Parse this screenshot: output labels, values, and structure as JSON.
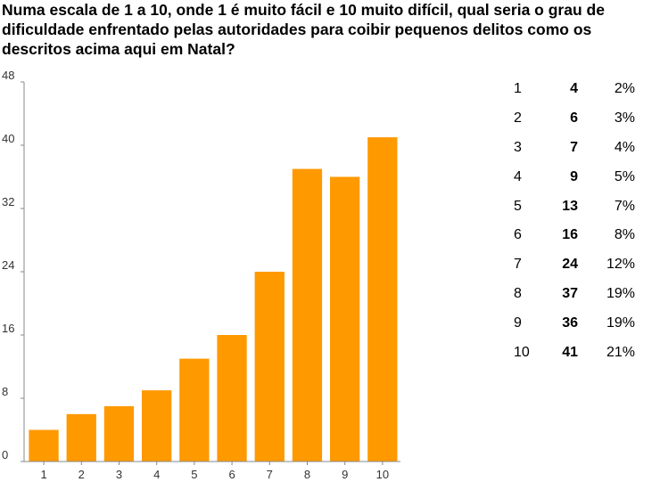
{
  "question": "Numa escala de 1 a 10, onde 1 é muito fácil e 10 muito difícil, qual seria o grau de dificuldade enfrentado pelas autoridades para coibir pequenos delitos como os descritos acima aqui em Natal?",
  "colors": {
    "bar": "#FF9900",
    "axis": "#888888"
  },
  "chart_data": {
    "type": "bar",
    "title": "Numa escala de 1 a 10, onde 1 é muito fácil e 10 muito difícil, qual seria o grau de dificuldade enfrentado pelas autoridades para coibir pequenos delitos como os descritos acima aqui em Natal?",
    "categories": [
      "1",
      "2",
      "3",
      "4",
      "5",
      "6",
      "7",
      "8",
      "9",
      "10"
    ],
    "values": [
      4,
      6,
      7,
      9,
      13,
      16,
      24,
      37,
      36,
      41
    ],
    "yticks": [
      "0",
      "8",
      "16",
      "24",
      "32",
      "40",
      "48"
    ],
    "ylim": [
      0,
      48
    ],
    "xlabel": "",
    "ylabel": "",
    "grid": false,
    "legend": "none"
  },
  "summary": [
    {
      "label": "1",
      "count": "4",
      "pct": "2%"
    },
    {
      "label": "2",
      "count": "6",
      "pct": "3%"
    },
    {
      "label": "3",
      "count": "7",
      "pct": "4%"
    },
    {
      "label": "4",
      "count": "9",
      "pct": "5%"
    },
    {
      "label": "5",
      "count": "13",
      "pct": "7%"
    },
    {
      "label": "6",
      "count": "16",
      "pct": "8%"
    },
    {
      "label": "7",
      "count": "24",
      "pct": "12%"
    },
    {
      "label": "8",
      "count": "37",
      "pct": "19%"
    },
    {
      "label": "9",
      "count": "36",
      "pct": "19%"
    },
    {
      "label": "10",
      "count": "41",
      "pct": "21%"
    }
  ]
}
